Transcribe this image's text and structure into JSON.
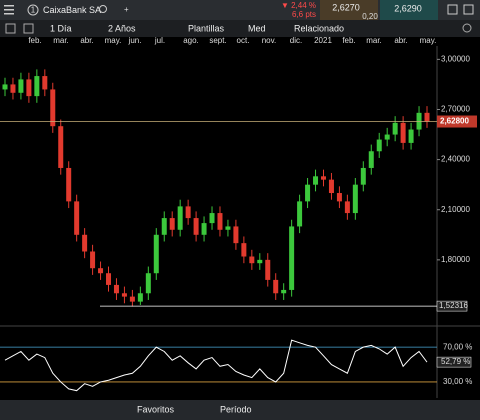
{
  "header": {
    "symbol": "CaixaBank SA",
    "change": "▼ 2,44 %",
    "change_pts": "6,6 pts",
    "bid": "2,6270",
    "spread": "0,20",
    "ask": "2,6290"
  },
  "toolbar": {
    "interval": "1 Día",
    "range": "2 Años",
    "templates": "Plantillas",
    "mode": "Med",
    "related": "Relacionado"
  },
  "chart_data": {
    "type": "candlestick",
    "categories": [
      "feb.",
      "mar.",
      "abr.",
      "may.",
      "jun.",
      "jul.",
      "ago.",
      "sept.",
      "oct.",
      "nov.",
      "dic.",
      "2021",
      "feb.",
      "mar.",
      "abr.",
      "may."
    ],
    "open": [
      2.82,
      2.85,
      2.8,
      2.88,
      2.78,
      2.9,
      2.82,
      2.6,
      2.35,
      2.15,
      1.95,
      1.85,
      1.75,
      1.72,
      1.65,
      1.6,
      1.58,
      1.55,
      1.6,
      1.72,
      1.95,
      2.05,
      1.98,
      2.12,
      2.05,
      1.95,
      2.02,
      2.08,
      1.98,
      2.0,
      1.9,
      1.82,
      1.78,
      1.8,
      1.68,
      1.6,
      1.62,
      2.0,
      2.15,
      2.25,
      2.3,
      2.28,
      2.2,
      2.15,
      2.08,
      2.25,
      2.35,
      2.45,
      2.52,
      2.55,
      2.62,
      2.5,
      2.58,
      2.68
    ],
    "high": [
      2.89,
      2.89,
      2.92,
      2.92,
      2.94,
      2.94,
      2.86,
      2.64,
      2.39,
      2.19,
      1.99,
      1.89,
      1.79,
      1.76,
      1.69,
      1.64,
      1.62,
      1.64,
      1.76,
      1.99,
      2.09,
      2.09,
      2.16,
      2.16,
      2.09,
      2.06,
      2.12,
      2.12,
      2.04,
      2.04,
      1.94,
      1.86,
      1.84,
      1.84,
      1.72,
      1.66,
      2.04,
      2.19,
      2.29,
      2.34,
      2.34,
      2.32,
      2.24,
      2.19,
      2.29,
      2.39,
      2.49,
      2.56,
      2.59,
      2.66,
      2.66,
      2.62,
      2.72,
      2.72
    ],
    "low": [
      2.78,
      2.76,
      2.76,
      2.74,
      2.74,
      2.78,
      2.56,
      2.31,
      2.11,
      1.91,
      1.81,
      1.71,
      1.68,
      1.61,
      1.56,
      1.54,
      1.52,
      1.53,
      1.56,
      1.68,
      1.91,
      1.94,
      1.94,
      2.01,
      1.91,
      1.91,
      1.98,
      1.94,
      1.94,
      1.86,
      1.78,
      1.74,
      1.74,
      1.64,
      1.56,
      1.56,
      1.58,
      1.96,
      2.11,
      2.21,
      2.24,
      2.16,
      2.11,
      2.04,
      2.04,
      2.21,
      2.31,
      2.41,
      2.48,
      2.51,
      2.46,
      2.46,
      2.54,
      2.59
    ],
    "close": [
      2.85,
      2.8,
      2.88,
      2.78,
      2.9,
      2.82,
      2.6,
      2.35,
      2.15,
      1.95,
      1.85,
      1.75,
      1.72,
      1.65,
      1.6,
      1.58,
      1.55,
      1.6,
      1.72,
      1.95,
      2.05,
      1.98,
      2.12,
      2.05,
      1.95,
      2.02,
      2.08,
      1.98,
      2.0,
      1.9,
      1.82,
      1.78,
      1.8,
      1.68,
      1.6,
      1.62,
      2.0,
      2.15,
      2.25,
      2.3,
      2.28,
      2.2,
      2.15,
      2.08,
      2.25,
      2.35,
      2.45,
      2.52,
      2.55,
      2.62,
      2.5,
      2.58,
      2.68,
      2.628
    ],
    "up_color": "#3cc83c",
    "down_color": "#e23a2e",
    "ylim": [
      1.44,
      3.08
    ],
    "yticks": [
      {
        "value": 3.0,
        "label": "3,00000"
      },
      {
        "value": 2.7,
        "label": "2,70000"
      },
      {
        "value": 2.4,
        "label": "2,40000"
      },
      {
        "value": 2.1,
        "label": "2,10000"
      },
      {
        "value": 1.8,
        "label": "1,80000"
      }
    ],
    "last_price": {
      "value": 2.628,
      "label": "2,62800"
    },
    "low_line": {
      "value": 1.52316,
      "label": "1,52316"
    },
    "rsi": {
      "values": [
        55,
        60,
        65,
        55,
        62,
        58,
        40,
        30,
        22,
        20,
        28,
        25,
        30,
        32,
        35,
        38,
        40,
        48,
        60,
        70,
        65,
        55,
        60,
        52,
        45,
        55,
        58,
        48,
        50,
        42,
        38,
        35,
        45,
        35,
        30,
        40,
        78,
        75,
        72,
        70,
        60,
        50,
        45,
        40,
        65,
        70,
        72,
        68,
        62,
        70,
        48,
        58,
        65,
        52.79
      ],
      "value_labels_last": "52,79 %",
      "color": "#ffffff",
      "ylim": [
        15,
        92
      ],
      "yticks": [
        {
          "value": 70,
          "label": "70,00 %"
        },
        {
          "value": 30,
          "label": "30,00 %"
        }
      ]
    }
  },
  "footer": {
    "favorites": "Favoritos",
    "period": "Período"
  }
}
